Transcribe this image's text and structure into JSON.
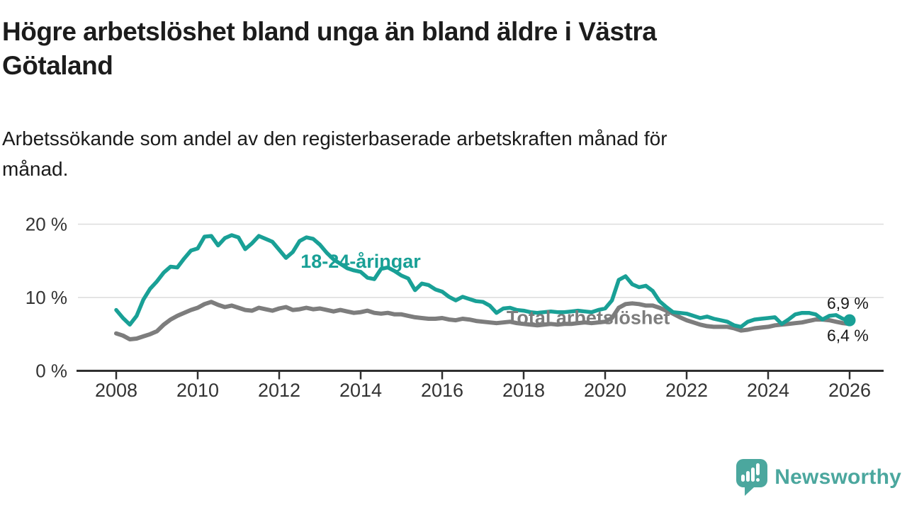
{
  "header": {
    "title_lines": [
      "Högre arbetslöshet bland unga än bland äldre i Västra",
      "Götaland"
    ],
    "subtitle_lines": [
      "Arbetssökande som andel av den registerbaserade arbetskraften månad för",
      "månad."
    ]
  },
  "branding": {
    "logo_text": "Newsworthy",
    "logo_icon": "bar-chart-speech-bubble-icon",
    "logo_color": "#4ba79e"
  },
  "colors": {
    "youth_line": "#19a096",
    "total_line": "#7d7d7d",
    "gridline": "#dcdcdc",
    "axis": "#2f2f2f",
    "tick_text": "#333333",
    "end_label_text": "#1a1a1a",
    "background": "#ffffff"
  },
  "chart_data": {
    "type": "line",
    "title": "Högre arbetslöshet bland unga än bland äldre i Västra Götaland",
    "subtitle": "Arbetssökande som andel av den registerbaserade arbetskraften månad för månad.",
    "xlabel": "",
    "ylabel": "",
    "grid": "horizontal-only",
    "legend_position": "inline-labels",
    "x_axis": {
      "ticks": [
        2008,
        2010,
        2012,
        2014,
        2016,
        2018,
        2020,
        2022,
        2024,
        2026
      ],
      "tick_labels": [
        "2008",
        "2010",
        "2012",
        "2014",
        "2016",
        "2018",
        "2020",
        "2022",
        "2024",
        "2026"
      ],
      "range": [
        2007.9,
        2026.85
      ]
    },
    "y_axis": {
      "ticks": [
        0,
        10,
        20
      ],
      "tick_labels": [
        "0 %",
        "10 %",
        "20 %"
      ],
      "gridlines": [
        10,
        20
      ],
      "range": [
        0,
        22.5
      ]
    },
    "x_start": 2008,
    "x_step_years": 0.166667,
    "series": [
      {
        "name": "Total arbetslöshet",
        "key": "total",
        "color": "#7d7d7d",
        "end_label": "6,4 %",
        "end_dot": false,
        "end_label_side": "below",
        "label": {
          "x": 2017.58,
          "y": 6.4,
          "anchor": "start"
        },
        "values": [
          5.1,
          4.8,
          4.3,
          4.4,
          4.7,
          5.0,
          5.4,
          6.3,
          7.0,
          7.5,
          7.9,
          8.3,
          8.6,
          9.1,
          9.4,
          9.0,
          8.7,
          8.9,
          8.6,
          8.3,
          8.2,
          8.6,
          8.4,
          8.2,
          8.5,
          8.7,
          8.3,
          8.4,
          8.6,
          8.4,
          8.5,
          8.3,
          8.1,
          8.3,
          8.1,
          7.9,
          8.0,
          8.2,
          7.9,
          7.8,
          7.9,
          7.7,
          7.7,
          7.5,
          7.3,
          7.2,
          7.1,
          7.1,
          7.2,
          7.0,
          6.9,
          7.1,
          7.0,
          6.8,
          6.7,
          6.6,
          6.5,
          6.6,
          6.7,
          6.5,
          6.4,
          6.3,
          6.2,
          6.3,
          6.4,
          6.3,
          6.4,
          6.4,
          6.5,
          6.6,
          6.5,
          6.6,
          6.7,
          7.2,
          8.6,
          9.1,
          9.2,
          9.1,
          8.9,
          8.9,
          8.6,
          8.2,
          7.8,
          7.3,
          6.9,
          6.6,
          6.3,
          6.1,
          6.0,
          6.0,
          6.0,
          5.8,
          5.5,
          5.6,
          5.8,
          5.9,
          6.0,
          6.2,
          6.3,
          6.4,
          6.5,
          6.6,
          6.8,
          7.0,
          7.0,
          6.9,
          6.7,
          6.5,
          6.4
        ]
      },
      {
        "name": "18-24-åringar",
        "key": "youth",
        "color": "#19a096",
        "end_label": "6,9 %",
        "end_dot": true,
        "end_label_side": "above",
        "label": {
          "x": 2014.0,
          "y": 14.05,
          "anchor": "middle"
        },
        "values": [
          8.3,
          7.2,
          6.3,
          7.5,
          9.7,
          11.2,
          12.2,
          13.4,
          14.2,
          14.1,
          15.3,
          16.4,
          16.7,
          18.3,
          18.4,
          17.1,
          18.1,
          18.5,
          18.2,
          16.6,
          17.4,
          18.4,
          18.0,
          17.6,
          16.5,
          15.4,
          16.2,
          17.7,
          18.2,
          18.0,
          17.2,
          16.1,
          15.2,
          14.6,
          14.0,
          13.7,
          13.5,
          12.7,
          12.5,
          13.9,
          14.1,
          13.6,
          13.0,
          12.6,
          11.0,
          11.9,
          11.7,
          11.1,
          10.8,
          10.1,
          9.6,
          10.1,
          9.8,
          9.5,
          9.4,
          8.9,
          7.9,
          8.5,
          8.6,
          8.3,
          8.2,
          8.0,
          7.9,
          8.0,
          8.1,
          8.0,
          8.0,
          8.1,
          8.2,
          8.1,
          8.0,
          8.3,
          8.5,
          9.6,
          12.4,
          12.9,
          11.8,
          11.4,
          11.6,
          10.9,
          9.5,
          8.7,
          8.0,
          7.9,
          7.8,
          7.5,
          7.2,
          7.4,
          7.1,
          6.9,
          6.7,
          6.2,
          6.0,
          6.7,
          7.0,
          7.1,
          7.2,
          7.3,
          6.4,
          7.0,
          7.7,
          7.9,
          7.9,
          7.7,
          7.0,
          7.5,
          7.6,
          7.1,
          6.9
        ]
      }
    ]
  }
}
